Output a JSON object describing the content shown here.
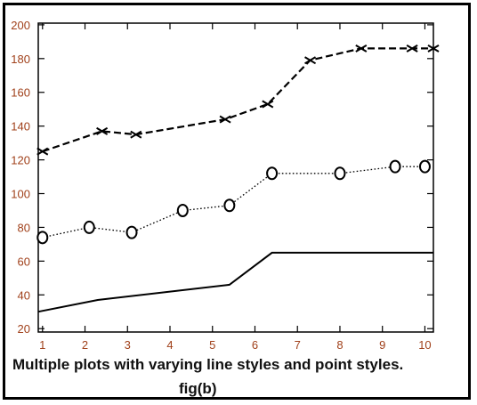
{
  "caption": {
    "line1": "Multiple plots with varying line styles and point styles.",
    "line2": "fig(b)"
  },
  "chart_data": {
    "type": "line",
    "title": "Multiple plots with varying line styles and point styles.",
    "xlabel": "",
    "ylabel": "",
    "xlim": [
      0.9,
      10.2
    ],
    "ylim": [
      18,
      201
    ],
    "xticks": [
      1,
      2,
      3,
      4,
      5,
      6,
      7,
      8,
      9,
      10
    ],
    "yticks": [
      20,
      40,
      60,
      80,
      100,
      120,
      140,
      160,
      180,
      200
    ],
    "grid": false,
    "colors": {
      "line": "#000000",
      "tick_label": "#a0401a",
      "axis": "#000000"
    },
    "series": [
      {
        "style": "dashed",
        "marker": "x",
        "x": [
          1.0,
          2.4,
          3.2,
          5.3,
          6.3,
          7.3,
          8.5,
          9.7,
          10.2
        ],
        "y": [
          125,
          137,
          135,
          144,
          153,
          179,
          186,
          186,
          186
        ]
      },
      {
        "style": "dotted",
        "marker": "o",
        "x": [
          1.0,
          2.1,
          3.1,
          4.3,
          5.4,
          6.4,
          8.0,
          9.3,
          10.0
        ],
        "y": [
          74,
          80,
          77,
          90,
          93,
          112,
          112,
          116,
          116
        ]
      },
      {
        "style": "solid",
        "marker": "none",
        "x": [
          0.9,
          2.3,
          5.4,
          6.4,
          10.2
        ],
        "y": [
          30,
          37,
          46,
          65,
          65
        ]
      }
    ]
  }
}
